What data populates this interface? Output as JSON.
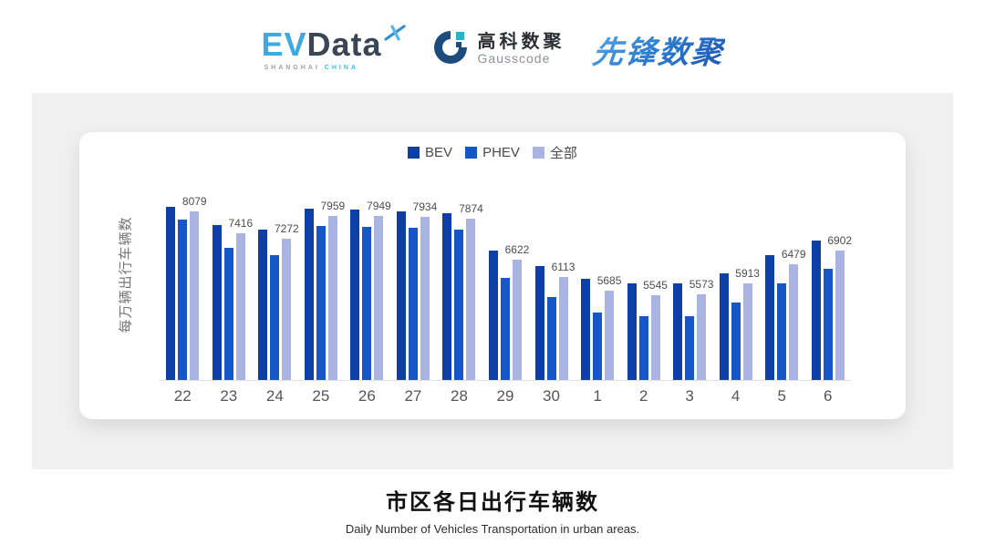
{
  "header": {
    "evdata": {
      "ev": "EV",
      "data": "Data",
      "sub_left": "SHANGHAI",
      "sub_right": "CHINA"
    },
    "gausscode": {
      "cn": "高科数聚",
      "en": "Gausscode"
    },
    "xianfeng": {
      "text": "先锋数聚"
    }
  },
  "footer": {
    "title": "市区各日出行车辆数",
    "subtitle": "Daily Number of Vehicles Transportation in urban areas."
  },
  "chart_data": {
    "type": "bar",
    "title": "市区各日出行车辆数",
    "ylabel": "每万辆出行车辆数",
    "xlabel": "",
    "categories": [
      "22",
      "23",
      "24",
      "25",
      "26",
      "27",
      "28",
      "29",
      "30",
      "1",
      "2",
      "3",
      "4",
      "5",
      "6"
    ],
    "series": [
      {
        "name": "BEV",
        "color": "#0e3fa6",
        "values": [
          8230,
          7680,
          7550,
          8160,
          8140,
          8090,
          8030,
          6900,
          6430,
          6040,
          5910,
          5910,
          6230,
          6780,
          7200
        ],
        "values_estimated": true
      },
      {
        "name": "PHEV",
        "color": "#1656c9",
        "values": [
          7840,
          6990,
          6780,
          7640,
          7630,
          7590,
          7540,
          6090,
          5500,
          5040,
          4930,
          4920,
          5340,
          5910,
          6360
        ],
        "values_estimated": true
      },
      {
        "name": "全部",
        "color": "#aab4e2",
        "values": [
          8079,
          7416,
          7272,
          7959,
          7949,
          7934,
          7874,
          6622,
          6113,
          5685,
          5545,
          5573,
          5913,
          6479,
          6902
        ],
        "values_estimated": false
      }
    ],
    "value_labels_series": "全部",
    "ylim": [
      3000,
      8500
    ],
    "grid": false,
    "legend_position": "top",
    "axis_line_color": "#e0e0e3"
  }
}
